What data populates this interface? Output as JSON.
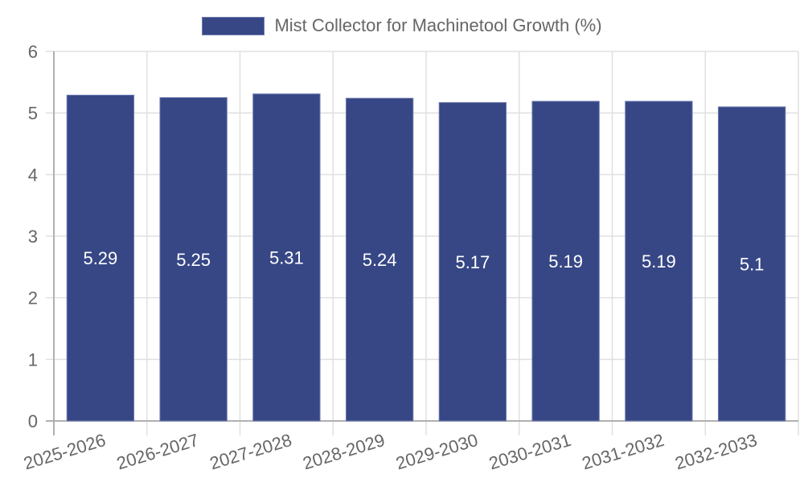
{
  "legend": {
    "label": "Mist Collector for Machinetool Growth (%)",
    "color": "#374785"
  },
  "colors": {
    "bar": "#374785",
    "bar_border": "#6f7cb0",
    "grid": "#e0e0e0",
    "axis": "#b0b0b0",
    "text": "#666666"
  },
  "chart_data": {
    "type": "bar",
    "title": "",
    "categories": [
      "2025-2026",
      "2026-2027",
      "2027-2028",
      "2028-2029",
      "2029-2030",
      "2030-2031",
      "2031-2032",
      "2032-2033"
    ],
    "series": [
      {
        "name": "Mist Collector for Machinetool Growth (%)",
        "values": [
          5.29,
          5.25,
          5.31,
          5.24,
          5.17,
          5.19,
          5.19,
          5.1
        ]
      }
    ],
    "value_labels": [
      "5.29",
      "5.25",
      "5.31",
      "5.24",
      "5.17",
      "5.19",
      "5.19",
      "5.1"
    ],
    "xlabel": "",
    "ylabel": "",
    "ylim": [
      0,
      6
    ],
    "yticks": [
      "0",
      "1",
      "2",
      "3",
      "4",
      "5",
      "6"
    ],
    "grid": true,
    "legend_position": "top"
  }
}
